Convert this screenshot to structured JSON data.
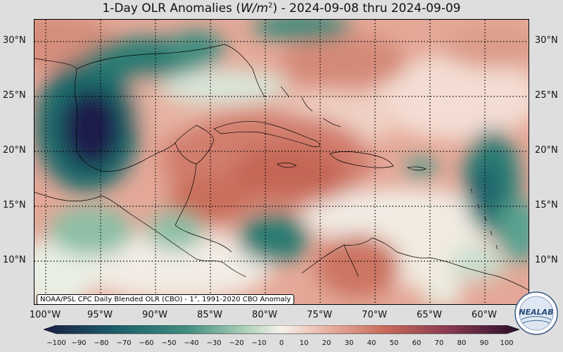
{
  "title": {
    "prefix": "1-Day OLR Anomalies (",
    "unit_base": "W/m",
    "unit_exp": "2",
    "suffix": ") - 2024-09-08 thru 2024-09-09"
  },
  "attribution": "NOAA/PSL CPC Daily Blended OLR (CBO) - 1°, 1991-2020 CBO Anomaly",
  "logo_text": "NEALAB",
  "map": {
    "lon_range": [
      -101,
      -56
    ],
    "lat_range": [
      6,
      32
    ],
    "lat_labels": [
      "30°N",
      "25°N",
      "20°N",
      "15°N",
      "10°N"
    ],
    "lon_labels": [
      "100°W",
      "95°W",
      "90°W",
      "85°W",
      "80°W",
      "75°W",
      "70°W",
      "65°W",
      "60°W"
    ]
  },
  "colorbar": {
    "ticks": [
      "−100",
      "−90",
      "−80",
      "−70",
      "−60",
      "−50",
      "−40",
      "−30",
      "−20",
      "−10",
      "0",
      "10",
      "20",
      "30",
      "40",
      "50",
      "60",
      "70",
      "80",
      "90",
      "100"
    ],
    "range": [
      -100,
      100
    ],
    "colors": {
      "neg_max": "#1d1d45",
      "neg_mid": "#1b6a6a",
      "neg_low": "#8ebfa5",
      "zero": "#f7f2ec",
      "pos_low": "#e8b0a0",
      "pos_mid": "#c86a5a",
      "pos_max": "#4a1a3a"
    }
  }
}
